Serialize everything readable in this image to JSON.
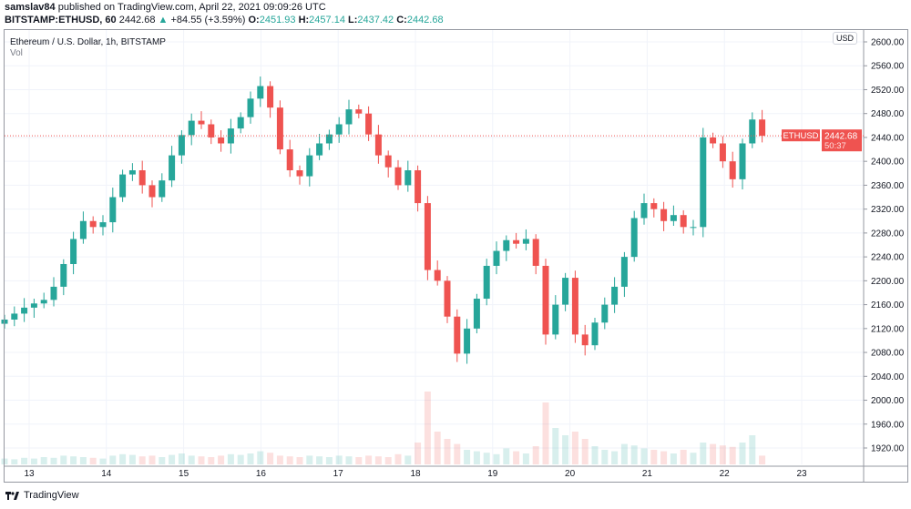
{
  "header": {
    "author": "samslav84",
    "published": "published on TradingView.com, April 22, 2021 09:09:26 UTC",
    "symbol": "BITSTAMP:ETHUSD, 60",
    "last": "2442.68",
    "change": "+84.55 (+3.59%)",
    "o_label": "O:",
    "o": "2451.93",
    "h_label": "H:",
    "h": "2457.14",
    "l_label": "L:",
    "l": "2437.42",
    "c_label": "C:",
    "c": "2442.68"
  },
  "legend": {
    "title": "Ethereum / U.S. Dollar, 1h, BITSTAMP",
    "vol": "Vol"
  },
  "currency": "USD",
  "price_label": {
    "symbol": "ETHUSD",
    "price": "2442.68",
    "countdown": "50:37"
  },
  "footer": {
    "brand": "TradingView"
  },
  "colors": {
    "up": "#26a69a",
    "down": "#ef5350",
    "grid": "#f0f3fa"
  },
  "chart_data": {
    "type": "candlestick",
    "candle_interval": "3h (approximated from 1h chart)",
    "ylim": [
      1890,
      2620
    ],
    "y_ticks": [
      1920,
      1960,
      2000,
      2040,
      2080,
      2120,
      2160,
      2200,
      2240,
      2280,
      2320,
      2360,
      2400,
      2440,
      2480,
      2520,
      2560,
      2600
    ],
    "x_ticks": [
      "13",
      "14",
      "15",
      "16",
      "17",
      "18",
      "19",
      "20",
      "21",
      "22",
      "23"
    ],
    "grid": true,
    "open_first": 2128,
    "close": [
      2135,
      2145,
      2155,
      2162,
      2168,
      2190,
      2228,
      2270,
      2300,
      2290,
      2298,
      2340,
      2378,
      2385,
      2360,
      2340,
      2368,
      2410,
      2444,
      2468,
      2462,
      2440,
      2430,
      2455,
      2474,
      2505,
      2526,
      2490,
      2420,
      2385,
      2375,
      2410,
      2430,
      2445,
      2462,
      2487,
      2480,
      2445,
      2410,
      2390,
      2360,
      2385,
      2330,
      2218,
      2200,
      2140,
      2078,
      2120,
      2170,
      2225,
      2250,
      2268,
      2262,
      2270,
      2225,
      2110,
      2160,
      2205,
      2110,
      2092,
      2130,
      2160,
      2190,
      2240,
      2305,
      2330,
      2320,
      2300,
      2310,
      2290,
      2290,
      2440,
      2430,
      2400,
      2370,
      2430,
      2470,
      2442.68
    ],
    "volume": [
      8,
      7,
      9,
      8,
      10,
      9,
      12,
      11,
      10,
      9,
      8,
      12,
      14,
      13,
      11,
      12,
      10,
      13,
      15,
      12,
      11,
      10,
      12,
      14,
      13,
      15,
      18,
      16,
      12,
      11,
      10,
      12,
      11,
      10,
      12,
      11,
      10,
      12,
      11,
      10,
      14,
      12,
      30,
      100,
      45,
      35,
      28,
      20,
      18,
      16,
      14,
      22,
      18,
      15,
      25,
      85,
      50,
      40,
      45,
      35,
      25,
      20,
      18,
      28,
      26,
      22,
      20,
      18,
      15,
      20,
      16,
      30,
      28,
      26,
      24,
      30,
      40,
      12
    ]
  }
}
